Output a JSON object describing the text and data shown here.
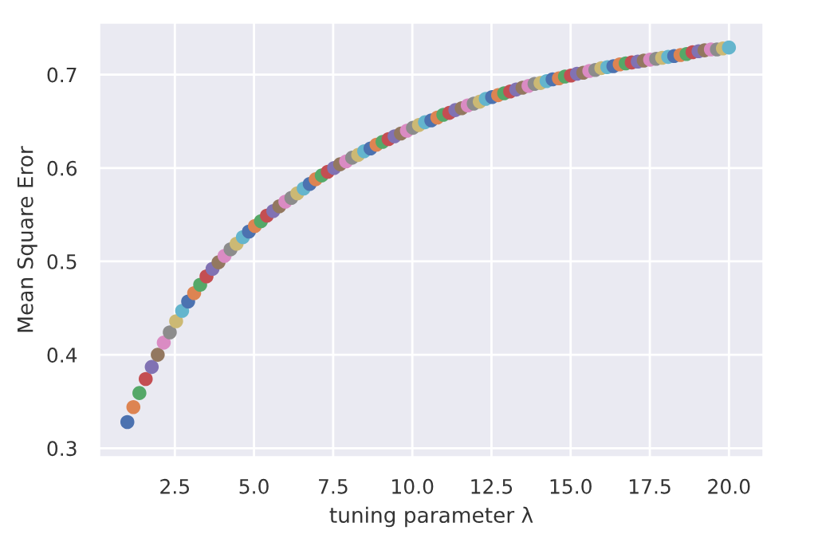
{
  "chart_data": {
    "type": "scatter",
    "xlabel": "tuning parameter λ",
    "ylabel": "Mean Square Eror",
    "x": [
      1.0,
      1.19,
      1.38,
      1.58,
      1.77,
      1.96,
      2.15,
      2.34,
      2.54,
      2.73,
      2.92,
      3.11,
      3.3,
      3.5,
      3.69,
      3.88,
      4.07,
      4.26,
      4.45,
      4.65,
      4.84,
      5.03,
      5.22,
      5.41,
      5.61,
      5.8,
      5.99,
      6.18,
      6.37,
      6.57,
      6.76,
      6.95,
      7.14,
      7.33,
      7.53,
      7.72,
      7.91,
      8.1,
      8.29,
      8.48,
      8.68,
      8.87,
      9.06,
      9.25,
      9.44,
      9.64,
      9.83,
      10.02,
      10.21,
      10.4,
      10.6,
      10.79,
      10.98,
      11.17,
      11.36,
      11.56,
      11.75,
      11.94,
      12.13,
      12.32,
      12.52,
      12.71,
      12.9,
      13.09,
      13.28,
      13.48,
      13.67,
      13.86,
      14.05,
      14.24,
      14.43,
      14.63,
      14.82,
      15.01,
      15.2,
      15.4,
      15.59,
      15.78,
      15.97,
      16.16,
      16.35,
      16.55,
      16.74,
      16.93,
      17.12,
      17.31,
      17.51,
      17.7,
      17.89,
      18.08,
      18.27,
      18.47,
      18.66,
      18.85,
      19.04,
      19.23,
      19.43,
      19.62,
      19.81,
      20.0
    ],
    "values": [
      0.328,
      0.344,
      0.359,
      0.374,
      0.387,
      0.4,
      0.413,
      0.424,
      0.436,
      0.447,
      0.457,
      0.466,
      0.475,
      0.484,
      0.492,
      0.499,
      0.506,
      0.513,
      0.519,
      0.526,
      0.532,
      0.538,
      0.543,
      0.549,
      0.554,
      0.559,
      0.564,
      0.568,
      0.573,
      0.578,
      0.583,
      0.588,
      0.592,
      0.596,
      0.6,
      0.604,
      0.607,
      0.611,
      0.614,
      0.618,
      0.621,
      0.625,
      0.628,
      0.631,
      0.634,
      0.637,
      0.64,
      0.643,
      0.646,
      0.649,
      0.651,
      0.654,
      0.657,
      0.659,
      0.662,
      0.664,
      0.667,
      0.669,
      0.671,
      0.674,
      0.676,
      0.678,
      0.68,
      0.682,
      0.684,
      0.686,
      0.688,
      0.69,
      0.691,
      0.693,
      0.695,
      0.696,
      0.698,
      0.699,
      0.701,
      0.702,
      0.704,
      0.705,
      0.707,
      0.708,
      0.709,
      0.711,
      0.712,
      0.713,
      0.714,
      0.715,
      0.716,
      0.717,
      0.718,
      0.719,
      0.72,
      0.721,
      0.722,
      0.724,
      0.725,
      0.726,
      0.727,
      0.727,
      0.728,
      0.729
    ],
    "colors": [
      "#4c72b0",
      "#dd8452",
      "#55a868",
      "#c44e52",
      "#8172b3",
      "#937860",
      "#da8bc3",
      "#8c8c8c",
      "#ccb974",
      "#64b5cd",
      "#4c72b0",
      "#dd8452",
      "#55a868",
      "#c44e52",
      "#8172b3",
      "#937860",
      "#da8bc3",
      "#8c8c8c",
      "#ccb974",
      "#64b5cd",
      "#4c72b0",
      "#dd8452",
      "#55a868",
      "#c44e52",
      "#8172b3",
      "#937860",
      "#da8bc3",
      "#8c8c8c",
      "#ccb974",
      "#64b5cd",
      "#4c72b0",
      "#dd8452",
      "#55a868",
      "#c44e52",
      "#8172b3",
      "#937860",
      "#da8bc3",
      "#8c8c8c",
      "#ccb974",
      "#64b5cd",
      "#4c72b0",
      "#dd8452",
      "#55a868",
      "#c44e52",
      "#8172b3",
      "#937860",
      "#da8bc3",
      "#8c8c8c",
      "#ccb974",
      "#64b5cd",
      "#4c72b0",
      "#dd8452",
      "#55a868",
      "#c44e52",
      "#8172b3",
      "#937860",
      "#da8bc3",
      "#8c8c8c",
      "#ccb974",
      "#64b5cd",
      "#4c72b0",
      "#dd8452",
      "#55a868",
      "#c44e52",
      "#8172b3",
      "#937860",
      "#da8bc3",
      "#8c8c8c",
      "#ccb974",
      "#64b5cd",
      "#4c72b0",
      "#dd8452",
      "#55a868",
      "#c44e52",
      "#8172b3",
      "#937860",
      "#da8bc3",
      "#8c8c8c",
      "#ccb974",
      "#64b5cd",
      "#4c72b0",
      "#dd8452",
      "#55a868",
      "#c44e52",
      "#8172b3",
      "#937860",
      "#da8bc3",
      "#8c8c8c",
      "#ccb974",
      "#64b5cd",
      "#4c72b0",
      "#dd8452",
      "#55a868",
      "#c44e52",
      "#8172b3",
      "#937860",
      "#da8bc3",
      "#8c8c8c",
      "#ccb974",
      "#64b5cd"
    ],
    "xlim": [
      0.1,
      21.1
    ],
    "ylim": [
      0.29,
      0.756
    ],
    "xticks": [
      {
        "value": 2.5,
        "label": "2.5"
      },
      {
        "value": 5,
        "label": "5.0"
      },
      {
        "value": 7.5,
        "label": "7.5"
      },
      {
        "value": 10,
        "label": "10.0"
      },
      {
        "value": 12.5,
        "label": "12.5"
      },
      {
        "value": 15,
        "label": "15.0"
      },
      {
        "value": 17.5,
        "label": "17.5"
      },
      {
        "value": 20,
        "label": "20.0"
      }
    ],
    "yticks": [
      0.3,
      0.4,
      0.5,
      0.6,
      0.7
    ],
    "grid": true,
    "marker": "circle"
  }
}
